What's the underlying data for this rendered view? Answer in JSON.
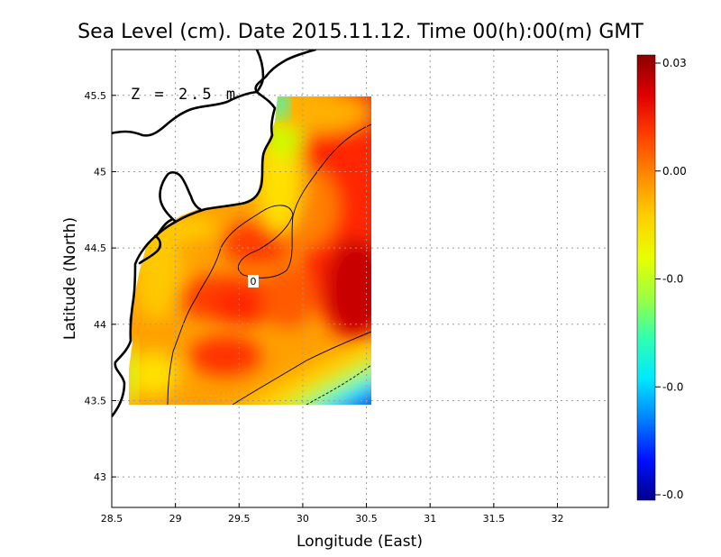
{
  "title": "Sea Level (cm). Date 2015.11.12. Time 00(h):00(m) GMT",
  "annotation": "Z = 2.5 m",
  "contour_label": "0",
  "chart_data": {
    "type": "heatmap",
    "title": "Sea Level (cm). Date 2015.11.12. Time 00(h):00(m) GMT",
    "xlabel": "Longitude (East)",
    "ylabel": "Latitude (North)",
    "xlim": [
      28.5,
      32.4
    ],
    "ylim": [
      42.8,
      45.8
    ],
    "x_ticks": [
      "28.5",
      "29",
      "29.5",
      "30",
      "30.5",
      "31",
      "31.5",
      "32"
    ],
    "y_ticks": [
      "43",
      "43.5",
      "44",
      "44.5",
      "45",
      "45.5"
    ],
    "grid": true,
    "data_extent": {
      "lon": [
        28.62,
        30.52
      ],
      "lat": [
        43.48,
        45.5
      ]
    },
    "colorbar": {
      "labels": [
        "0.03",
        "0.00",
        "-0.0",
        "-0.0",
        "-0.0"
      ],
      "colors": [
        "#8b0000",
        "#e00000",
        "#ff4000",
        "#ff8c00",
        "#ffd000",
        "#e8ff00",
        "#9cff40",
        "#30ffb0",
        "#00e8ff",
        "#0080ff",
        "#0010ff",
        "#00008b"
      ]
    }
  }
}
